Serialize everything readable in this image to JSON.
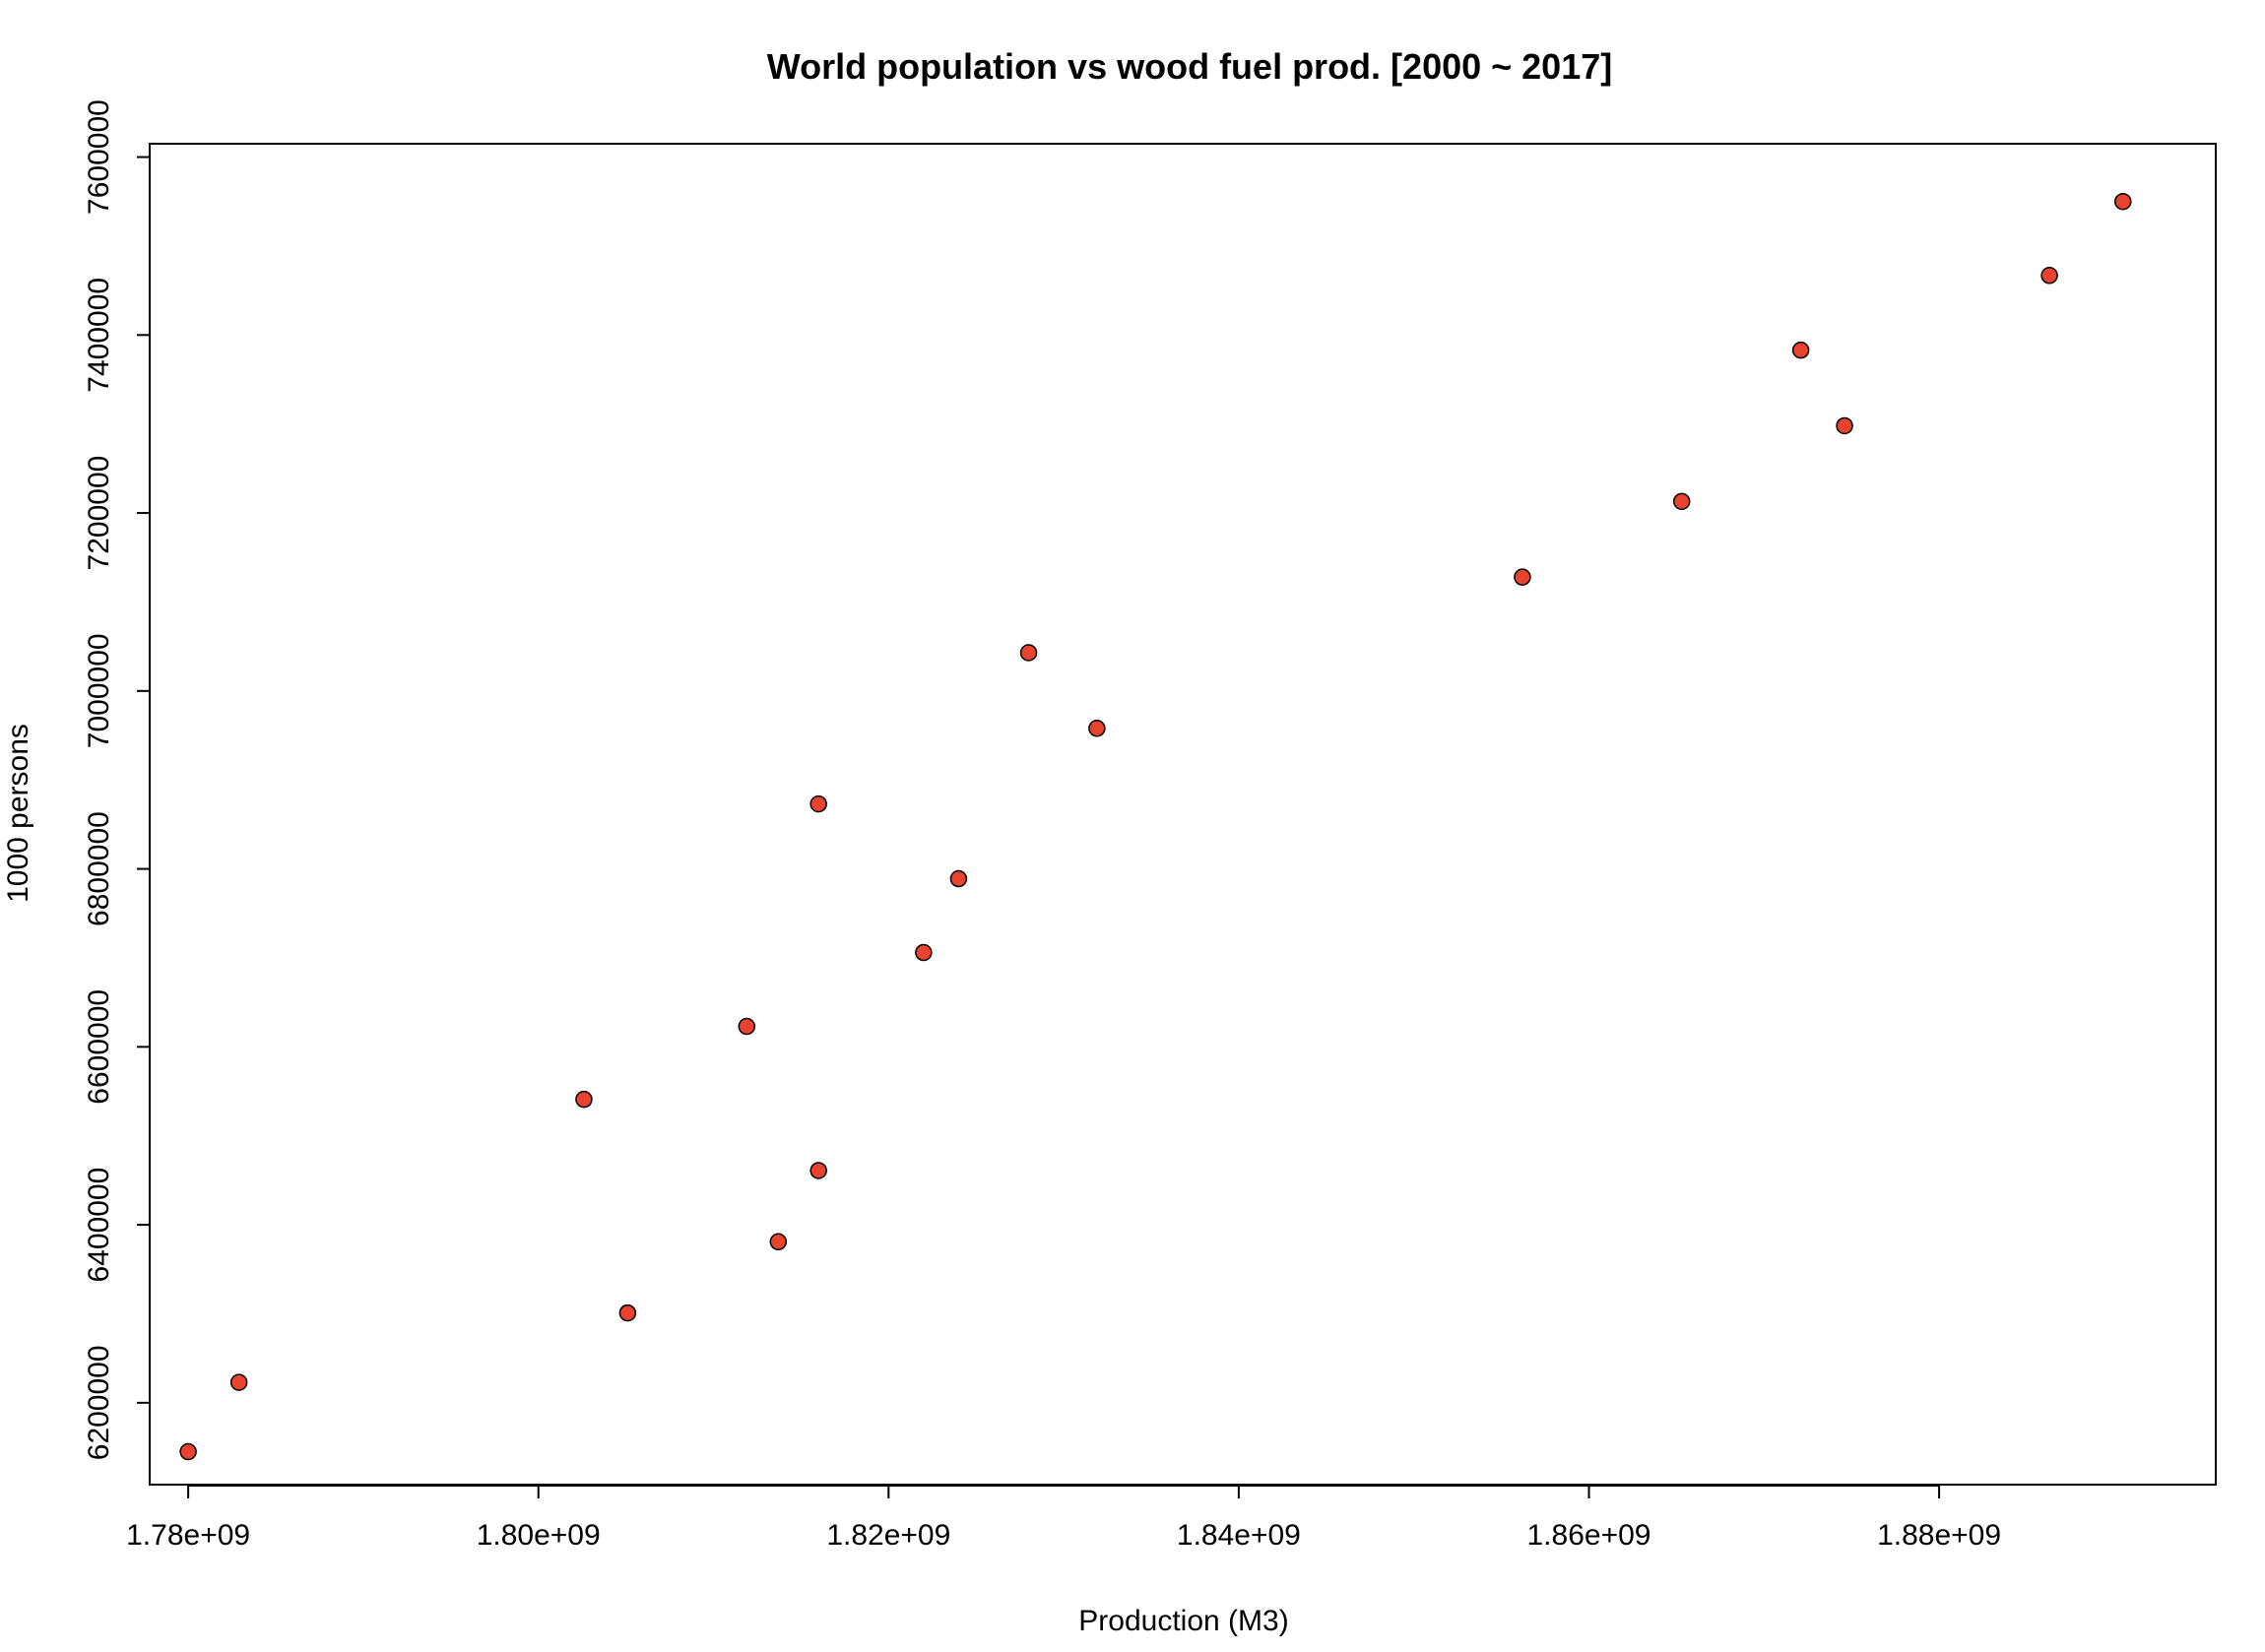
{
  "chart_data": {
    "type": "scatter",
    "title": "World population vs wood fuel prod. [2000 ~ 2017]",
    "xlabel": "Production (M3)",
    "ylabel": "1000 persons",
    "xlim": [
      1777800000.0,
      1895800000.0
    ],
    "ylim": [
      6108000,
      7615000
    ],
    "x_ticks": [
      1780000000.0,
      1800000000.0,
      1820000000.0,
      1840000000.0,
      1860000000.0,
      1880000000.0
    ],
    "x_tick_labels": [
      "1.78e+09",
      "1.80e+09",
      "1.82e+09",
      "1.84e+09",
      "1.86e+09",
      "1.88e+09"
    ],
    "y_ticks": [
      6200000,
      6400000,
      6600000,
      6800000,
      7000000,
      7200000,
      7400000,
      7600000
    ],
    "y_tick_labels": [
      "6200000",
      "6400000",
      "6600000",
      "6800000",
      "7000000",
      "7200000",
      "7400000",
      "7600000"
    ],
    "grid": false,
    "point_color": "#e8432f",
    "series": [
      {
        "name": "population vs wood fuel",
        "points": [
          {
            "x": 1780000000.0,
            "y": 6145000
          },
          {
            "x": 1782900000.0,
            "y": 6223000
          },
          {
            "x": 1805100000.0,
            "y": 6301000
          },
          {
            "x": 1813700000.0,
            "y": 6381000
          },
          {
            "x": 1816000000.0,
            "y": 6461000
          },
          {
            "x": 1802600000.0,
            "y": 6541000
          },
          {
            "x": 1811900000.0,
            "y": 6623000
          },
          {
            "x": 1822000000.0,
            "y": 6706000
          },
          {
            "x": 1824000000.0,
            "y": 6789000
          },
          {
            "x": 1816000000.0,
            "y": 6873000
          },
          {
            "x": 1831900000.0,
            "y": 6958000
          },
          {
            "x": 1828000000.0,
            "y": 7043000
          },
          {
            "x": 1856200000.0,
            "y": 7128000
          },
          {
            "x": 1865300000.0,
            "y": 7213000
          },
          {
            "x": 1874600000.0,
            "y": 7298000
          },
          {
            "x": 1872100000.0,
            "y": 7383000
          },
          {
            "x": 1886300000.0,
            "y": 7467000
          },
          {
            "x": 1890500000.0,
            "y": 7550000
          }
        ]
      }
    ]
  }
}
